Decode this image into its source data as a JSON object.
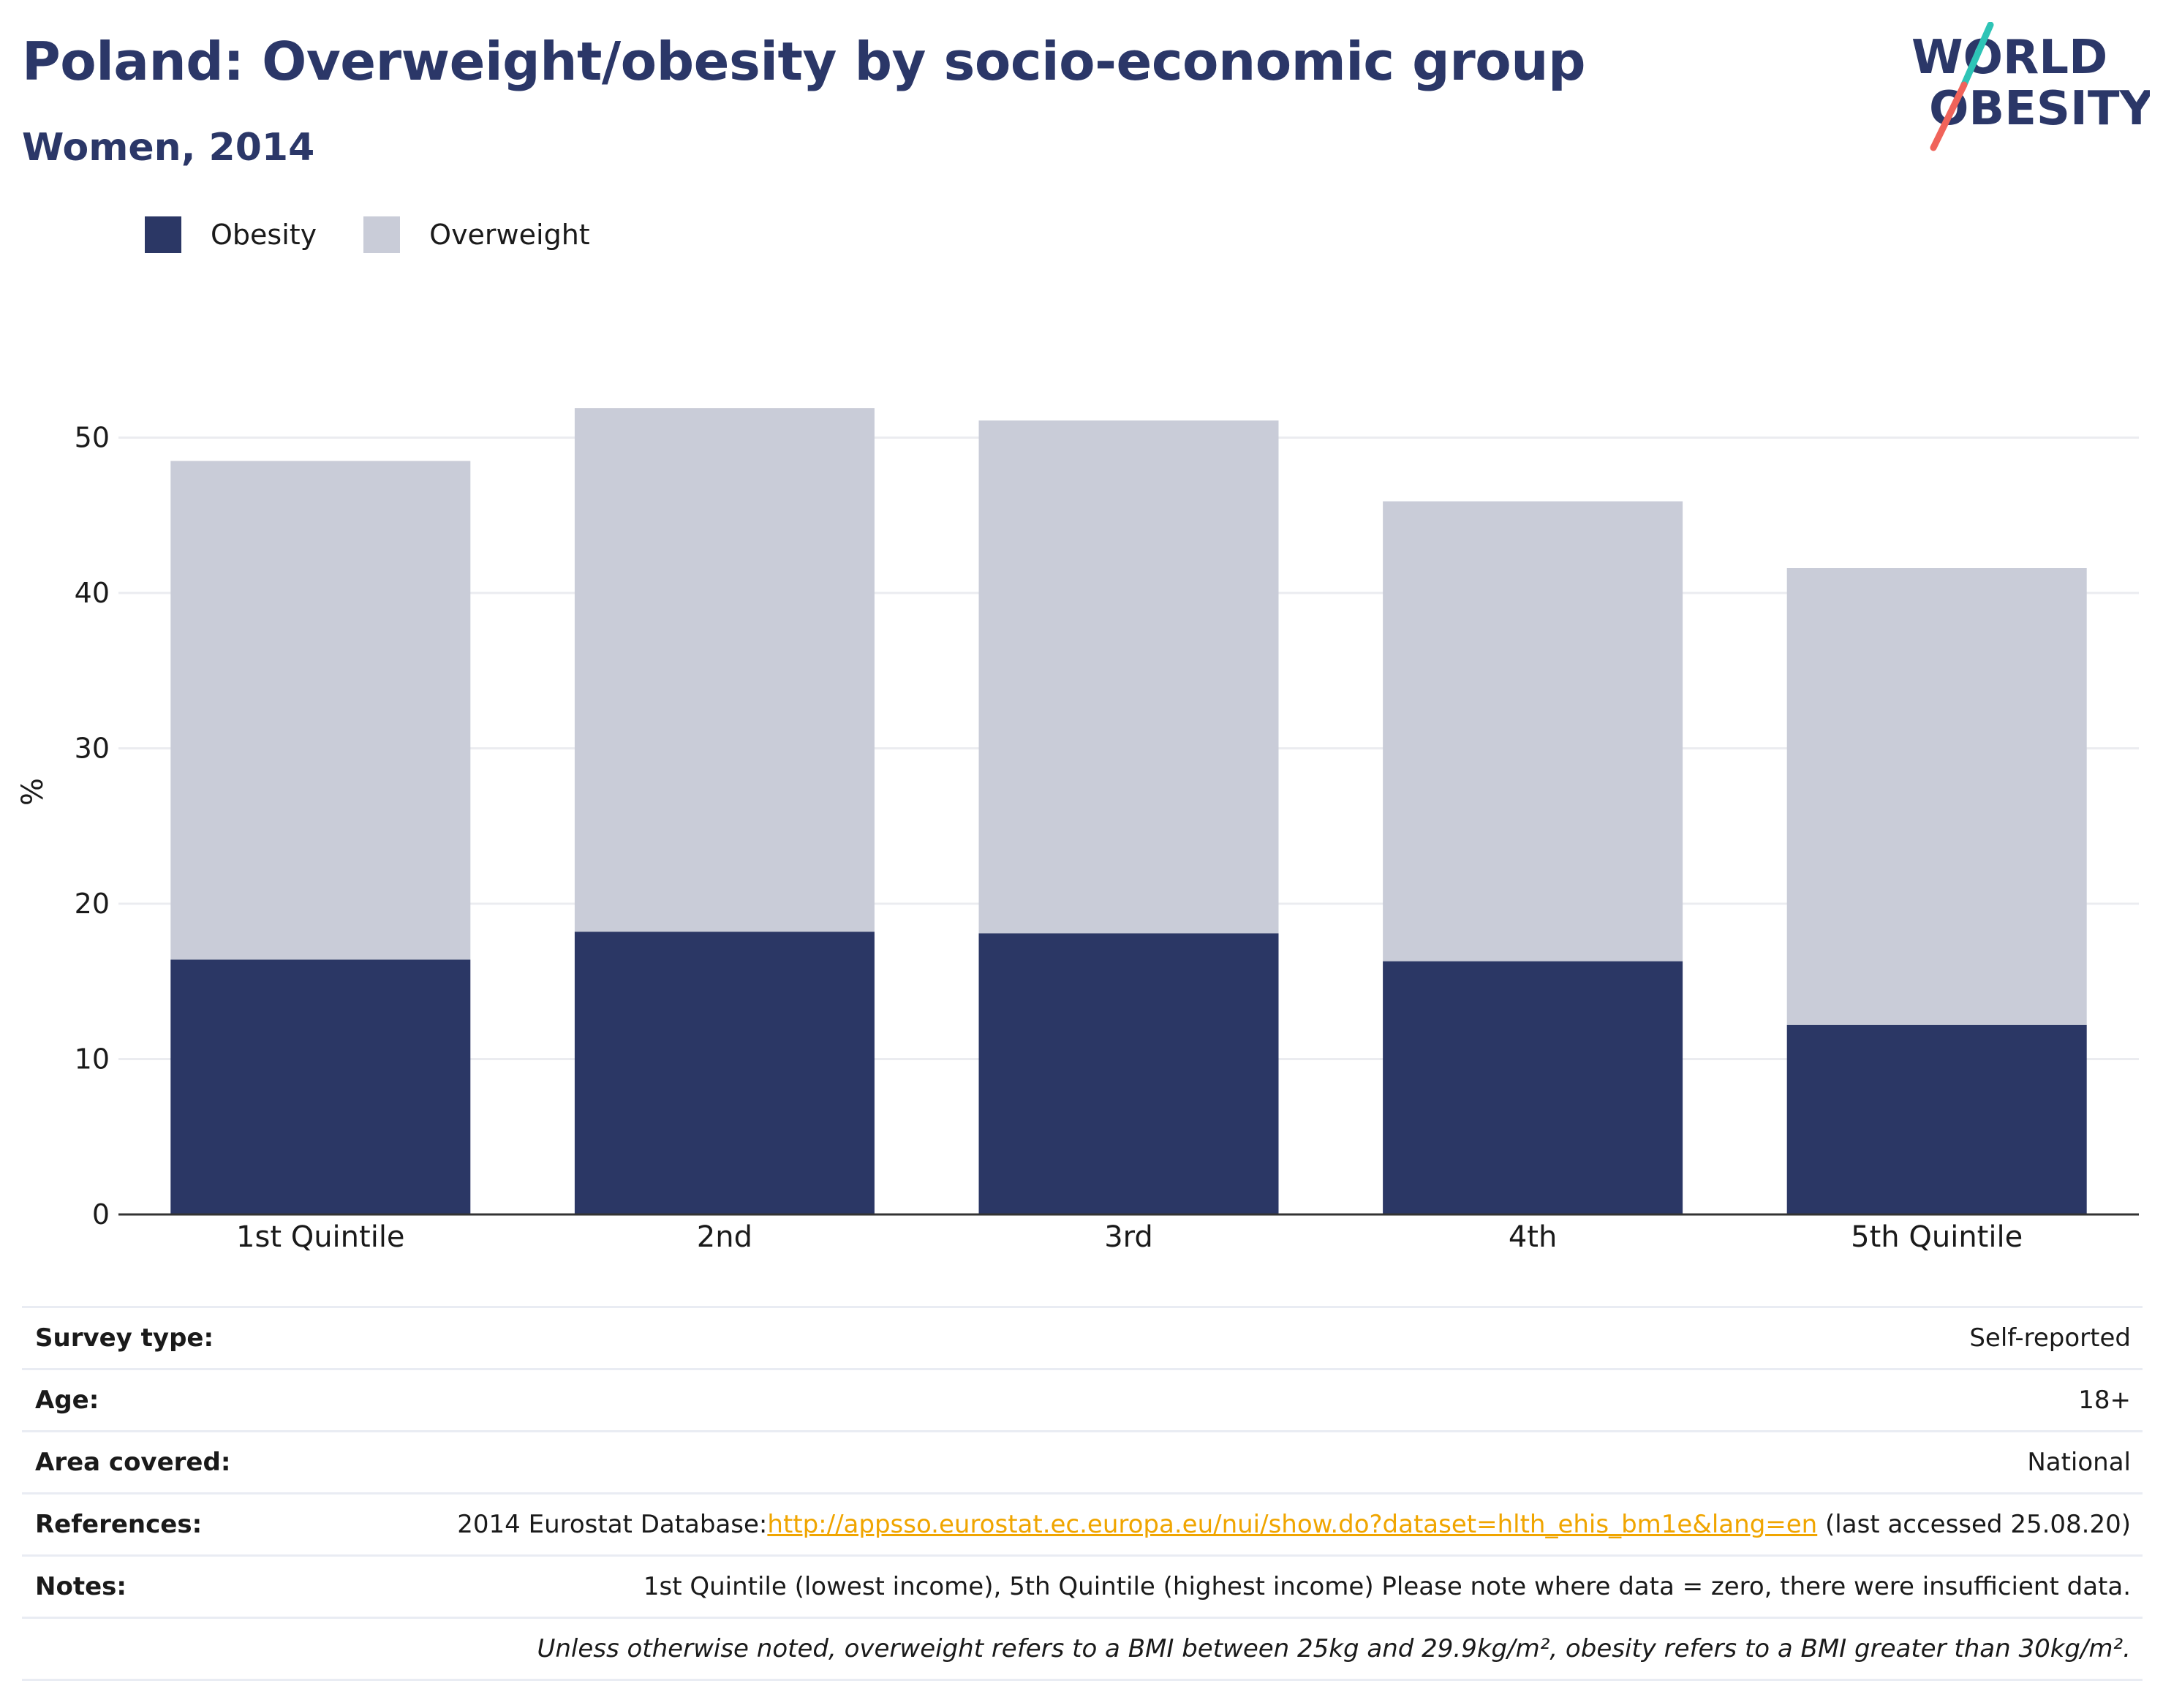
{
  "header": {
    "title": "Poland: Overweight/obesity by socio-economic group",
    "subtitle": "Women, 2014"
  },
  "logo": {
    "line1": "WORLD",
    "line2": "OBESITY",
    "colors": {
      "text": "#2b3768",
      "slash_top": "#2ec4b6",
      "slash_bottom": "#f0635a"
    }
  },
  "legend": [
    {
      "label": "Obesity",
      "color": "#2b3765"
    },
    {
      "label": "Overweight",
      "color": "#c9ccd8"
    }
  ],
  "chart_data": {
    "type": "bar",
    "stacked": true,
    "categories": [
      "1st Quintile",
      "2nd",
      "3rd",
      "4th",
      "5th Quintile"
    ],
    "series": [
      {
        "name": "Obesity",
        "values": [
          16.4,
          18.2,
          18.1,
          16.3,
          12.2
        ],
        "color": "#2b3765"
      },
      {
        "name": "Overweight",
        "values": [
          32.1,
          33.7,
          33.0,
          29.6,
          29.4
        ],
        "color": "#c9ccd8"
      }
    ],
    "ylabel": "%",
    "xlabel": "",
    "ylim": [
      0,
      55
    ],
    "yticks": [
      0,
      10,
      20,
      30,
      40,
      50
    ],
    "grid": true,
    "legend_position": "top-left"
  },
  "info": {
    "survey_type": {
      "label": "Survey type:",
      "value": "Self-reported"
    },
    "age": {
      "label": "Age:",
      "value": "18+"
    },
    "area": {
      "label": "Area covered:",
      "value": "National"
    },
    "references": {
      "label": "References:",
      "prefix": "2014 Eurostat Database:",
      "link": "http://appsso.eurostat.ec.europa.eu/nui/show.do?dataset=hlth_ehis_bm1e&lang=en",
      "suffix": " (last accessed 25.08.20)"
    },
    "notes": {
      "label": "Notes:",
      "value": "1st Quintile (lowest income), 5th Quintile (highest income) Please note where data = zero, there were insufficient data."
    },
    "footnote": "Unless otherwise noted, overweight refers to a BMI between 25kg and 29.9kg/m², obesity refers to a BMI greater than 30kg/m²."
  }
}
